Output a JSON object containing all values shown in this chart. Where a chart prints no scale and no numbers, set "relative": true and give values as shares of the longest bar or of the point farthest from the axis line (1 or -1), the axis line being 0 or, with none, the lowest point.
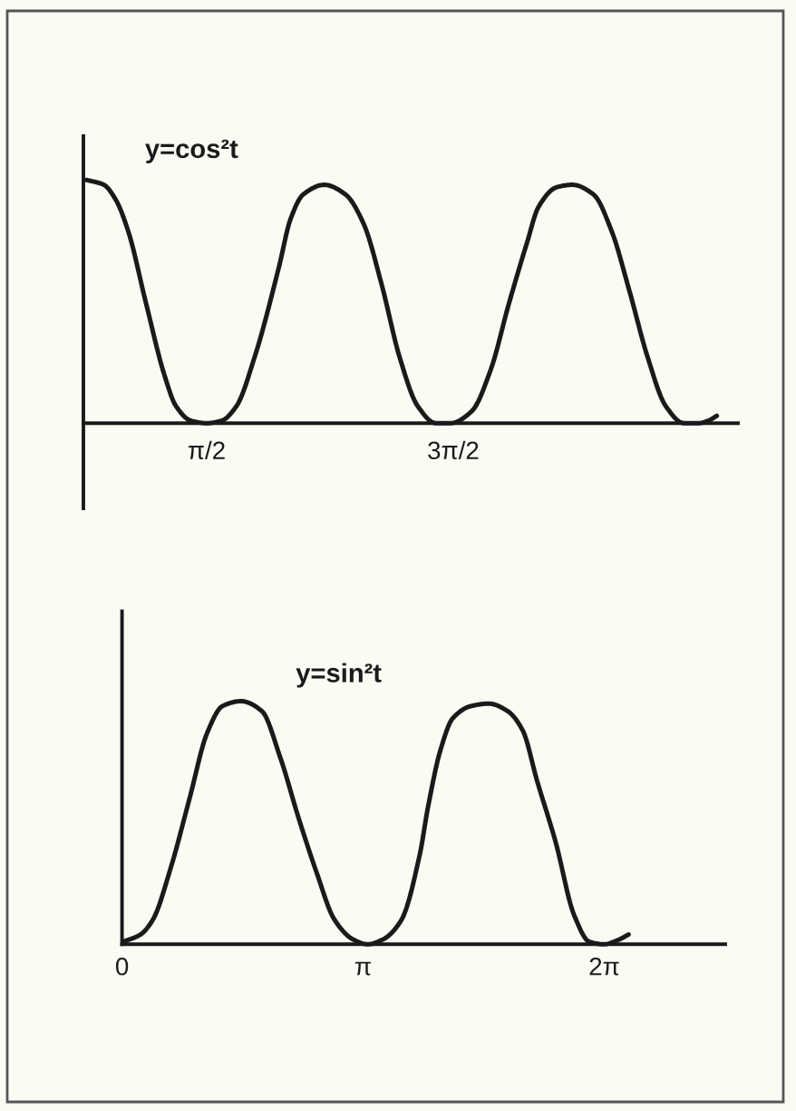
{
  "chart_data": [
    {
      "type": "line",
      "title": "y=cos²t",
      "relative": true,
      "tick_labels": "x",
      "line_style": "solid",
      "x": [
        0.04,
        0.26,
        0.41,
        0.57,
        0.8,
        1.03,
        1.18,
        1.37,
        1.57,
        1.76,
        1.95,
        2.18,
        2.49,
        2.64,
        2.8,
        3.07,
        3.34,
        3.57,
        3.8,
        4.03,
        4.26,
        4.49,
        4.68,
        4.95,
        5.19,
        5.42,
        5.65,
        5.8,
        6.03,
        6.23,
        6.5,
        6.73,
        6.96,
        7.19,
        7.42,
        7.65,
        7.84,
        7.96,
        8.07
      ],
      "series": [
        {
          "color": "#1a1a1a",
          "values": [
            1.0,
            0.98,
            0.92,
            0.79,
            0.49,
            0.2,
            0.07,
            0.01,
            0.0,
            0.01,
            0.07,
            0.27,
            0.64,
            0.84,
            0.94,
            0.98,
            0.94,
            0.82,
            0.57,
            0.27,
            0.07,
            0.0,
            0.0,
            0.05,
            0.22,
            0.49,
            0.74,
            0.89,
            0.97,
            0.98,
            0.94,
            0.79,
            0.54,
            0.27,
            0.07,
            0.0,
            0.0,
            0.01,
            0.03
          ]
        }
      ],
      "xlim": [
        0,
        8.34
      ],
      "xticks": [
        {
          "value": 1.5708,
          "label": "π/2"
        },
        {
          "value": 4.7124,
          "label": "3π/2"
        }
      ]
    },
    {
      "type": "line",
      "title": "y=sin²t",
      "relative": true,
      "tick_labels": "x",
      "line_style": "solid",
      "x": [
        0.01,
        0.24,
        0.4,
        0.64,
        0.88,
        1.11,
        1.31,
        1.55,
        1.82,
        2.06,
        2.3,
        2.53,
        2.77,
        3.01,
        3.2,
        3.4,
        3.64,
        3.88,
        3.99,
        4.15,
        4.31,
        4.55,
        4.78,
        5.02,
        5.22,
        5.41,
        5.65,
        5.89,
        6.09,
        6.28,
        6.48,
        6.6
      ],
      "series": [
        {
          "color": "#1a1a1a",
          "values": [
            0.01,
            0.04,
            0.1,
            0.32,
            0.6,
            0.87,
            0.98,
            1.0,
            0.96,
            0.77,
            0.52,
            0.3,
            0.1,
            0.02,
            0.0,
            0.02,
            0.1,
            0.37,
            0.57,
            0.8,
            0.93,
            0.98,
            0.99,
            0.96,
            0.88,
            0.67,
            0.42,
            0.12,
            0.01,
            0.0,
            0.02,
            0.04
          ]
        }
      ],
      "xlim": [
        0,
        7.86
      ],
      "xticks": [
        {
          "value": 0,
          "label": "0"
        },
        {
          "value": 3.1416,
          "label": "π"
        },
        {
          "value": 6.2832,
          "label": "2π"
        }
      ]
    }
  ]
}
